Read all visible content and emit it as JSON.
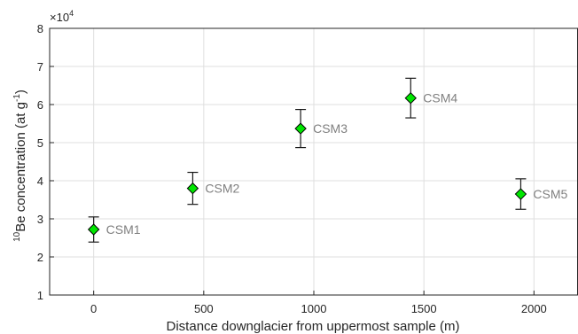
{
  "chart_data": {
    "type": "scatter",
    "title": "",
    "xlabel": "Distance downglacier from uppermost sample (m)",
    "ylabel": {
      "sup_mass": "10",
      "main": "Be concentration (at g",
      "sup_exp": "-1",
      "close": ")"
    },
    "y_multiplier": {
      "base": "×10",
      "exp": "4"
    },
    "xlim": [
      -200,
      2200
    ],
    "ylim": [
      1,
      8
    ],
    "xticks": [
      0,
      500,
      1000,
      1500,
      2000
    ],
    "yticks": [
      1,
      2,
      3,
      4,
      5,
      6,
      7,
      8
    ],
    "grid": true,
    "marker": "diamond",
    "marker_color": "#00e600",
    "points": [
      {
        "label": "CSM1",
        "x": 0,
        "y": 2.72,
        "err": 0.33
      },
      {
        "label": "CSM2",
        "x": 450,
        "y": 3.8,
        "err": 0.42
      },
      {
        "label": "CSM3",
        "x": 940,
        "y": 5.37,
        "err": 0.5
      },
      {
        "label": "CSM4",
        "x": 1440,
        "y": 6.17,
        "err": 0.52
      },
      {
        "label": "CSM5",
        "x": 1940,
        "y": 3.65,
        "err": 0.4
      }
    ]
  }
}
